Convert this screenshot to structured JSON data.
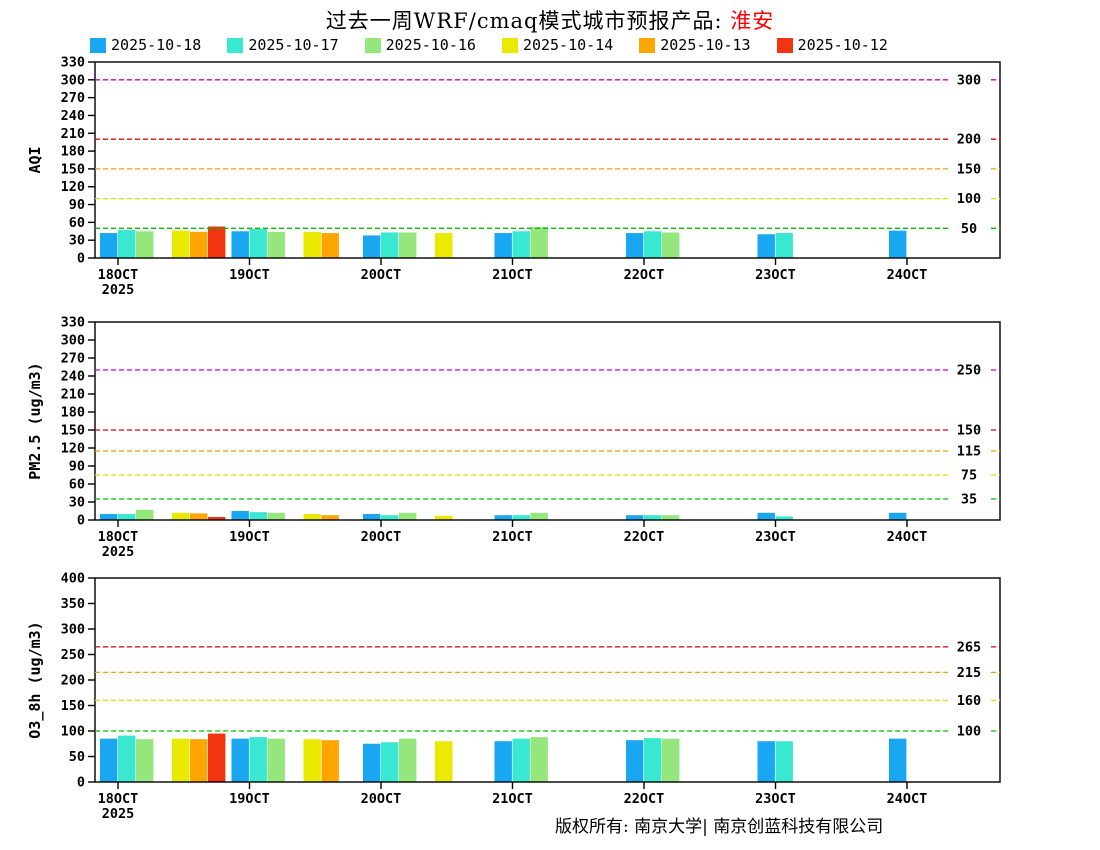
{
  "title": {
    "main": "过去一周WRF/cmaq模式城市预报产品: ",
    "city": "淮安"
  },
  "legend": [
    {
      "label": "2025-10-18",
      "color": "#18A7F0"
    },
    {
      "label": "2025-10-17",
      "color": "#38E8D0"
    },
    {
      "label": "2025-10-16",
      "color": "#95E67C"
    },
    {
      "label": "2025-10-14",
      "color": "#EAEA00"
    },
    {
      "label": "2025-10-13",
      "color": "#FFA500"
    },
    {
      "label": "2025-10-12",
      "color": "#F03510"
    }
  ],
  "x_labels": [
    "18OCT",
    "19OCT",
    "20OCT",
    "21OCT",
    "22OCT",
    "23OCT",
    "24OCT"
  ],
  "x_sub_label": "2025",
  "footer": {
    "text": "版权所有: 南京大学| 南京创蓝科技有限公司"
  },
  "chart_data": [
    {
      "type": "bar",
      "name": "aqi",
      "title": "AQI forecast by model run date",
      "ylabel": "AQI",
      "ylim": [
        0,
        330
      ],
      "ytick_step": 30,
      "grid": false,
      "legend_position": "top",
      "categories": [
        "18OCT",
        "19OCT",
        "20OCT",
        "21OCT",
        "22OCT",
        "23OCT",
        "24OCT"
      ],
      "series": [
        {
          "name": "2025-10-18",
          "values": [
            42,
            45,
            38,
            42,
            42,
            40,
            46
          ]
        },
        {
          "name": "2025-10-17",
          "values": [
            47,
            49,
            43,
            45,
            45,
            42,
            null
          ]
        },
        {
          "name": "2025-10-16",
          "values": [
            45,
            44,
            43,
            52,
            43,
            null,
            null
          ]
        },
        {
          "name": "2025-10-14",
          "values": [
            46,
            44,
            42,
            null,
            null,
            null,
            null
          ]
        },
        {
          "name": "2025-10-13",
          "values": [
            44,
            42,
            null,
            null,
            null,
            null,
            null
          ]
        },
        {
          "name": "2025-10-12",
          "values": [
            53,
            null,
            null,
            null,
            null,
            null,
            null
          ]
        }
      ],
      "ref_lines": [
        {
          "value": 50,
          "color": "#00C000",
          "label": "50"
        },
        {
          "value": 100,
          "color": "#E0E000",
          "label": "100"
        },
        {
          "value": 150,
          "color": "#FF9900",
          "label": "150"
        },
        {
          "value": 200,
          "color": "#E00000",
          "label": "200"
        },
        {
          "value": 300,
          "color": "#C800C8",
          "label": "300"
        }
      ]
    },
    {
      "type": "bar",
      "name": "pm25",
      "title": "PM2.5 forecast by model run date",
      "ylabel": "PM2.5 (ug/m3)",
      "ylim": [
        0,
        330
      ],
      "ytick_step": 30,
      "grid": false,
      "legend_position": "top",
      "categories": [
        "18OCT",
        "19OCT",
        "20OCT",
        "21OCT",
        "22OCT",
        "23OCT",
        "24OCT"
      ],
      "series": [
        {
          "name": "2025-10-18",
          "values": [
            10,
            15,
            10,
            8,
            8,
            12,
            12
          ]
        },
        {
          "name": "2025-10-17",
          "values": [
            10,
            13,
            8,
            8,
            8,
            6,
            null
          ]
        },
        {
          "name": "2025-10-16",
          "values": [
            17,
            12,
            12,
            12,
            8,
            null,
            null
          ]
        },
        {
          "name": "2025-10-14",
          "values": [
            12,
            10,
            7,
            null,
            null,
            null,
            null
          ]
        },
        {
          "name": "2025-10-13",
          "values": [
            11,
            8,
            null,
            null,
            null,
            null,
            null
          ]
        },
        {
          "name": "2025-10-12",
          "values": [
            5,
            null,
            null,
            null,
            null,
            null,
            null
          ]
        }
      ],
      "ref_lines": [
        {
          "value": 35,
          "color": "#00C000",
          "label": "35"
        },
        {
          "value": 75,
          "color": "#E0E000",
          "label": "75"
        },
        {
          "value": 115,
          "color": "#FF9900",
          "label": "115"
        },
        {
          "value": 150,
          "color": "#E00000",
          "label": "150"
        },
        {
          "value": 250,
          "color": "#C800C8",
          "label": "250"
        }
      ]
    },
    {
      "type": "bar",
      "name": "o3_8h",
      "title": "O3_8h forecast by model run date",
      "ylabel": "O3_8h (ug/m3)",
      "ylim": [
        0,
        400
      ],
      "ytick_step": 50,
      "grid": false,
      "legend_position": "top",
      "categories": [
        "18OCT",
        "19OCT",
        "20OCT",
        "21OCT",
        "22OCT",
        "23OCT",
        "24OCT"
      ],
      "series": [
        {
          "name": "2025-10-18",
          "values": [
            85,
            85,
            75,
            80,
            82,
            80,
            85
          ]
        },
        {
          "name": "2025-10-17",
          "values": [
            91,
            88,
            78,
            85,
            86,
            80,
            null
          ]
        },
        {
          "name": "2025-10-16",
          "values": [
            84,
            85,
            85,
            88,
            85,
            null,
            null
          ]
        },
        {
          "name": "2025-10-14",
          "values": [
            85,
            84,
            80,
            null,
            null,
            null,
            null
          ]
        },
        {
          "name": "2025-10-13",
          "values": [
            84,
            82,
            null,
            null,
            null,
            null,
            null
          ]
        },
        {
          "name": "2025-10-12",
          "values": [
            95,
            null,
            null,
            null,
            null,
            null,
            null
          ]
        }
      ],
      "ref_lines": [
        {
          "value": 100,
          "color": "#00C000",
          "label": "100"
        },
        {
          "value": 160,
          "color": "#E0E000",
          "label": "160"
        },
        {
          "value": 215,
          "color": "#FF9900",
          "label": "215"
        },
        {
          "value": 265,
          "color": "#E00000",
          "label": "265"
        }
      ]
    }
  ]
}
